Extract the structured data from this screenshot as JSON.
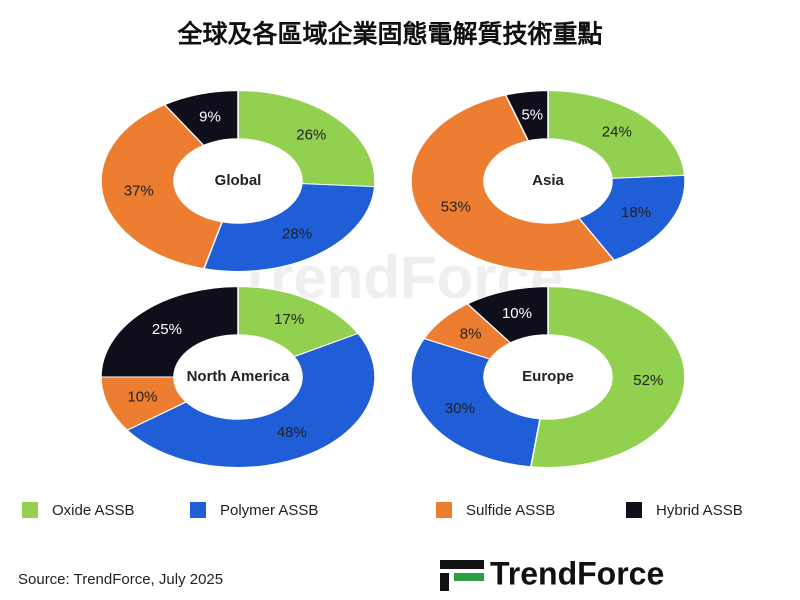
{
  "title": "全球及各區域企業固態電解質技術重點",
  "source": "Source: TrendForce, July 2025",
  "logo": "TrendForce",
  "chart_data": [
    {
      "type": "donut",
      "center_label": "Global",
      "categories": [
        "Oxide ASSB",
        "Polymer ASSB",
        "Sulfide ASSB",
        "Hybrid ASSB"
      ],
      "values": [
        26,
        28,
        37,
        9
      ],
      "value_labels": [
        "26%",
        "28%",
        "37%",
        "9%"
      ],
      "colors": [
        "#92d050",
        "#1f5ed6",
        "#ed7d31",
        "#0f0f1c"
      ]
    },
    {
      "type": "donut",
      "center_label": "Asia",
      "categories": [
        "Oxide ASSB",
        "Polymer ASSB",
        "Sulfide ASSB",
        "Hybrid ASSB"
      ],
      "values": [
        24,
        18,
        53,
        5
      ],
      "value_labels": [
        "24%",
        "18%",
        "53%",
        "5%"
      ],
      "colors": [
        "#92d050",
        "#1f5ed6",
        "#ed7d31",
        "#0f0f1c"
      ]
    },
    {
      "type": "donut",
      "center_label": "North America",
      "categories": [
        "Oxide ASSB",
        "Polymer ASSB",
        "Sulfide ASSB",
        "Hybrid ASSB"
      ],
      "values": [
        17,
        48,
        10,
        25
      ],
      "value_labels": [
        "17%",
        "48%",
        "10%",
        "25%"
      ],
      "colors": [
        "#92d050",
        "#1f5ed6",
        "#ed7d31",
        "#0f0f1c"
      ]
    },
    {
      "type": "donut",
      "center_label": "Europe",
      "categories": [
        "Oxide ASSB",
        "Polymer ASSB",
        "Sulfide ASSB",
        "Hybrid ASSB"
      ],
      "values": [
        52,
        30,
        8,
        10
      ],
      "value_labels": [
        "52%",
        "30%",
        "8%",
        "10%"
      ],
      "colors": [
        "#92d050",
        "#1f5ed6",
        "#ed7d31",
        "#0f0f1c"
      ]
    }
  ]
}
